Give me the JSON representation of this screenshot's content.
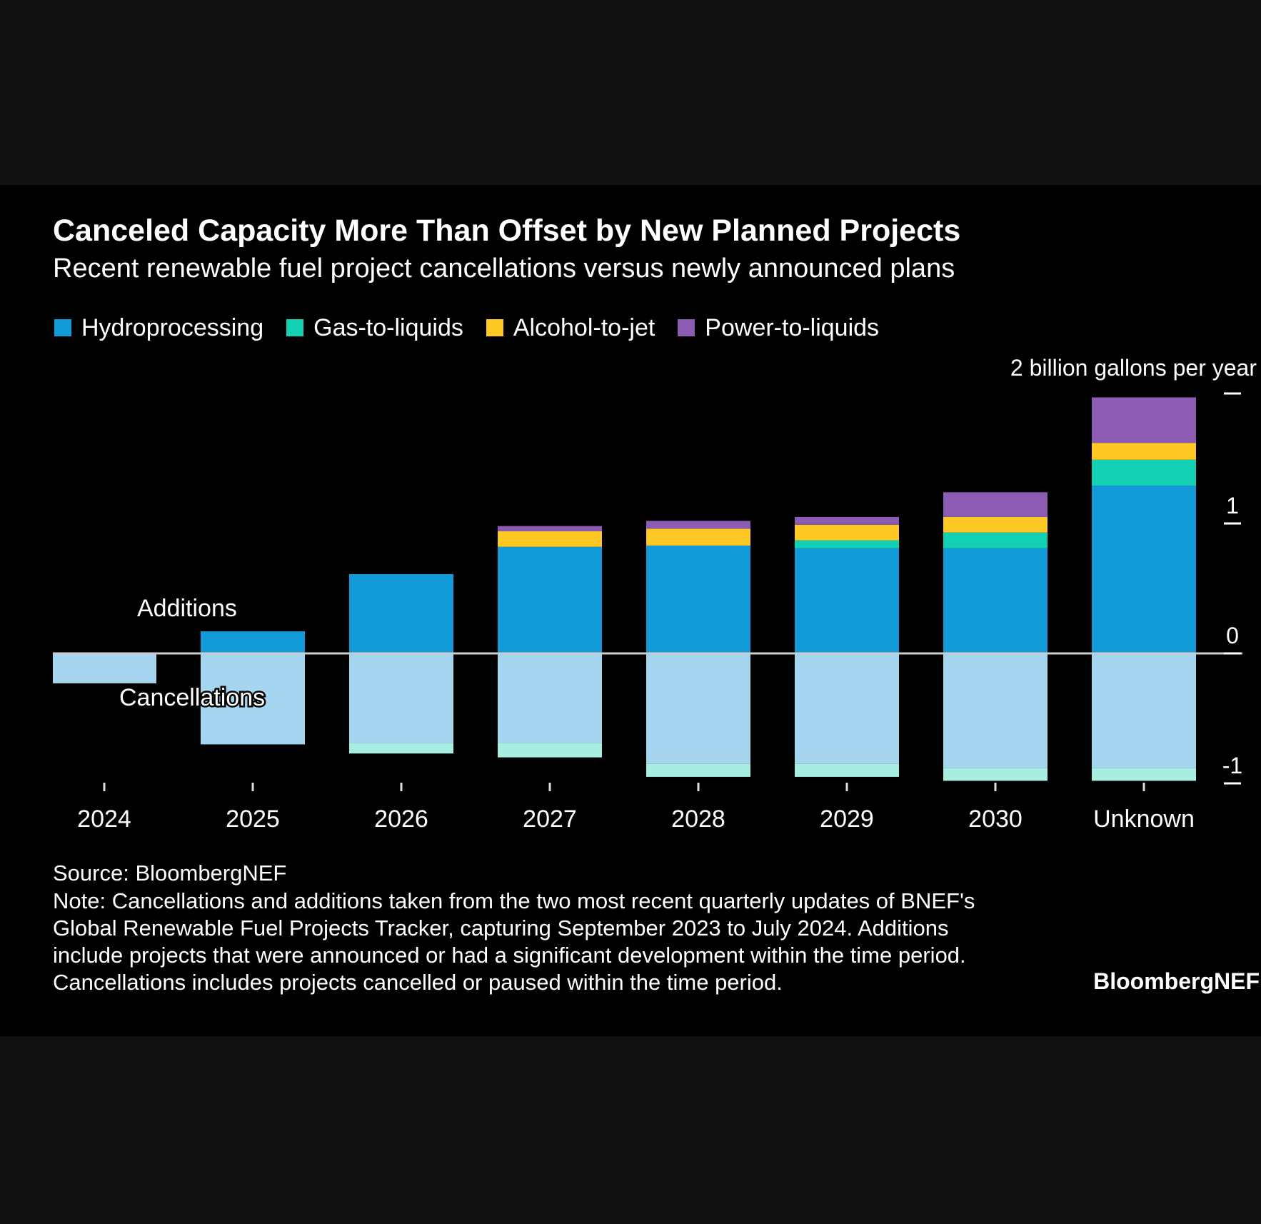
{
  "title": "Canceled Capacity More Than Offset by New Planned Projects",
  "subtitle": "Recent renewable fuel project cancellations versus newly announced plans",
  "legend": [
    {
      "label": "Hydroprocessing",
      "color": "#1199d8"
    },
    {
      "label": "Gas-to-liquids",
      "color": "#12d0b4"
    },
    {
      "label": "Alcohol-to-jet",
      "color": "#fdc823"
    },
    {
      "label": "Power-to-liquids",
      "color": "#8c5bb4"
    }
  ],
  "annotations": {
    "additions": "Additions",
    "cancellations": "Cancellations"
  },
  "source": "Source: BloombergNEF",
  "note_lines": [
    "Note: Cancellations and additions taken from the two most recent quarterly updates of BNEF's",
    "Global Renewable Fuel Projects Tracker, capturing September 2023 to July 2024. Additions",
    "include projects that were announced or had a significant development within the time period.",
    "Cancellations includes projects cancelled or paused within the time period."
  ],
  "brand": "BloombergNEF",
  "chart_data": {
    "type": "bar",
    "stacked": true,
    "categories": [
      "2024",
      "2025",
      "2026",
      "2027",
      "2028",
      "2029",
      "2030",
      "Unknown"
    ],
    "ylabel": "2 billion gallons per year",
    "ylim": [
      -1.0,
      2.0
    ],
    "yticks": [
      {
        "value": 2,
        "label": ""
      },
      {
        "value": 1,
        "label": "1"
      },
      {
        "value": 0,
        "label": "0"
      },
      {
        "value": -1,
        "label": "-1"
      }
    ],
    "axis_side": "right",
    "legend_position": "top-left",
    "grid": false,
    "series": [
      {
        "name": "Hydroprocessing",
        "group": "additions",
        "color": "#1199d8",
        "values": [
          0,
          0.17,
          0.61,
          0.82,
          0.83,
          0.81,
          0.81,
          1.29
        ]
      },
      {
        "name": "Gas-to-liquids",
        "group": "additions",
        "color": "#12d0b4",
        "values": [
          0,
          0,
          0,
          0,
          0,
          0.06,
          0.12,
          0.2
        ]
      },
      {
        "name": "Alcohol-to-jet",
        "group": "additions",
        "color": "#fdc823",
        "values": [
          0,
          0,
          0,
          0.12,
          0.13,
          0.12,
          0.12,
          0.13
        ]
      },
      {
        "name": "Power-to-liquids",
        "group": "additions",
        "color": "#8c5bb4",
        "values": [
          0,
          0,
          0,
          0.04,
          0.06,
          0.06,
          0.19,
          0.35
        ]
      },
      {
        "name": "Hydroprocessing",
        "group": "cancellations",
        "color": "#a6d5f0",
        "values": [
          -0.23,
          -0.7,
          -0.69,
          -0.69,
          -0.85,
          -0.85,
          -0.88,
          -0.88
        ]
      },
      {
        "name": "Gas-to-liquids",
        "group": "cancellations",
        "color": "#a7ede2",
        "values": [
          0,
          0,
          -0.08,
          -0.11,
          -0.1,
          -0.1,
          -0.1,
          -0.1
        ]
      }
    ]
  }
}
